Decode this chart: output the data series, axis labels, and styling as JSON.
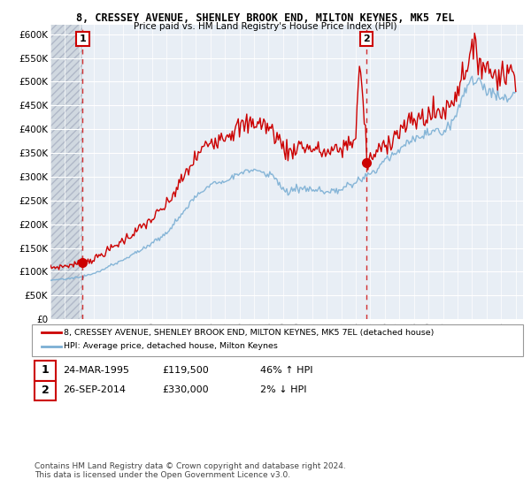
{
  "title": "8, CRESSEY AVENUE, SHENLEY BROOK END, MILTON KEYNES, MK5 7EL",
  "subtitle": "Price paid vs. HM Land Registry's House Price Index (HPI)",
  "legend_line1": "8, CRESSEY AVENUE, SHENLEY BROOK END, MILTON KEYNES, MK5 7EL (detached house)",
  "legend_line2": "HPI: Average price, detached house, Milton Keynes",
  "footer1": "Contains HM Land Registry data © Crown copyright and database right 2024.",
  "footer2": "This data is licensed under the Open Government Licence v3.0.",
  "sale1_date": "24-MAR-1995",
  "sale1_price": "£119,500",
  "sale1_hpi": "46% ↑ HPI",
  "sale2_date": "26-SEP-2014",
  "sale2_price": "£330,000",
  "sale2_hpi": "2% ↓ HPI",
  "ylim": [
    0,
    620000
  ],
  "yticks": [
    0,
    50000,
    100000,
    150000,
    200000,
    250000,
    300000,
    350000,
    400000,
    450000,
    500000,
    550000,
    600000
  ],
  "sale1_year": 1995.22,
  "sale1_value": 119500,
  "sale2_year": 2014.73,
  "sale2_value": 330000,
  "hpi_color": "#7BAFD4",
  "price_color": "#CC0000",
  "xlim_left": 1993.0,
  "xlim_right": 2025.5
}
